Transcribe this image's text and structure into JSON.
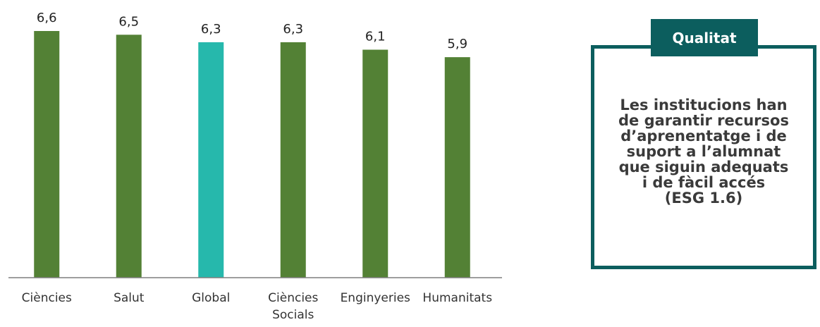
{
  "chart_data": {
    "type": "bar",
    "categories": [
      [
        "Ciències"
      ],
      [
        "Salut"
      ],
      [
        "Global"
      ],
      [
        "Ciències",
        "Socials"
      ],
      [
        "Enginyeries"
      ],
      [
        "Humanitats"
      ]
    ],
    "values": [
      6.6,
      6.5,
      6.3,
      6.3,
      6.1,
      5.9
    ],
    "value_labels": [
      "6,6",
      "6,5",
      "6,3",
      "6,3",
      "6,1",
      "5,9"
    ],
    "colors": [
      "#538135",
      "#538135",
      "#26b8ac",
      "#538135",
      "#538135",
      "#538135"
    ],
    "ylim": [
      0,
      6.6
    ],
    "title": "",
    "xlabel": "",
    "ylabel": "",
    "grid": false,
    "legend": "none"
  },
  "callout": {
    "title": "Qualitat",
    "lines": [
      "Les institucions han",
      "de garantir recursos",
      "d’aprenentatge i de",
      "suport a l’alumnat",
      "que siguin adequats",
      "i de fàcil accés",
      "(ESG 1.6)"
    ],
    "color": "#0c5e5e"
  }
}
